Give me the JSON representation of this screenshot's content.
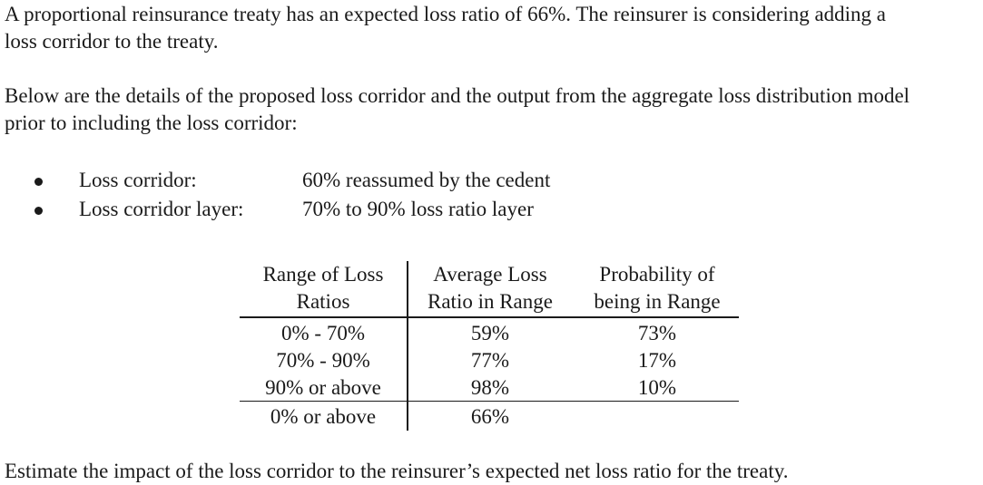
{
  "intro": {
    "line1": "A proportional reinsurance treaty has an expected loss ratio of 66%. The reinsurer is considering adding a",
    "line2": "loss corridor to the treaty."
  },
  "details": {
    "line1": "Below are the details of the proposed loss corridor and the output from the aggregate loss distribution model",
    "line2": "prior to including the loss corridor:"
  },
  "bullets": [
    {
      "label": "Loss corridor:",
      "value": "60% reassumed by the cedent"
    },
    {
      "label": "Loss corridor layer:",
      "value": "70% to 90% loss ratio layer"
    }
  ],
  "table": {
    "headers": [
      [
        "Range of Loss",
        "Ratios"
      ],
      [
        "Average Loss",
        "Ratio in Range"
      ],
      [
        "Probability of",
        "being in Range"
      ]
    ],
    "rows": [
      [
        "0% - 70%",
        "59%",
        "73%"
      ],
      [
        "70% - 90%",
        "77%",
        "17%"
      ],
      [
        "90% or above",
        "98%",
        "10%"
      ],
      [
        "0% or above",
        "66%",
        ""
      ]
    ]
  },
  "question": "Estimate the impact of the loss corridor to the reinsurer’s expected net loss ratio for the treaty."
}
